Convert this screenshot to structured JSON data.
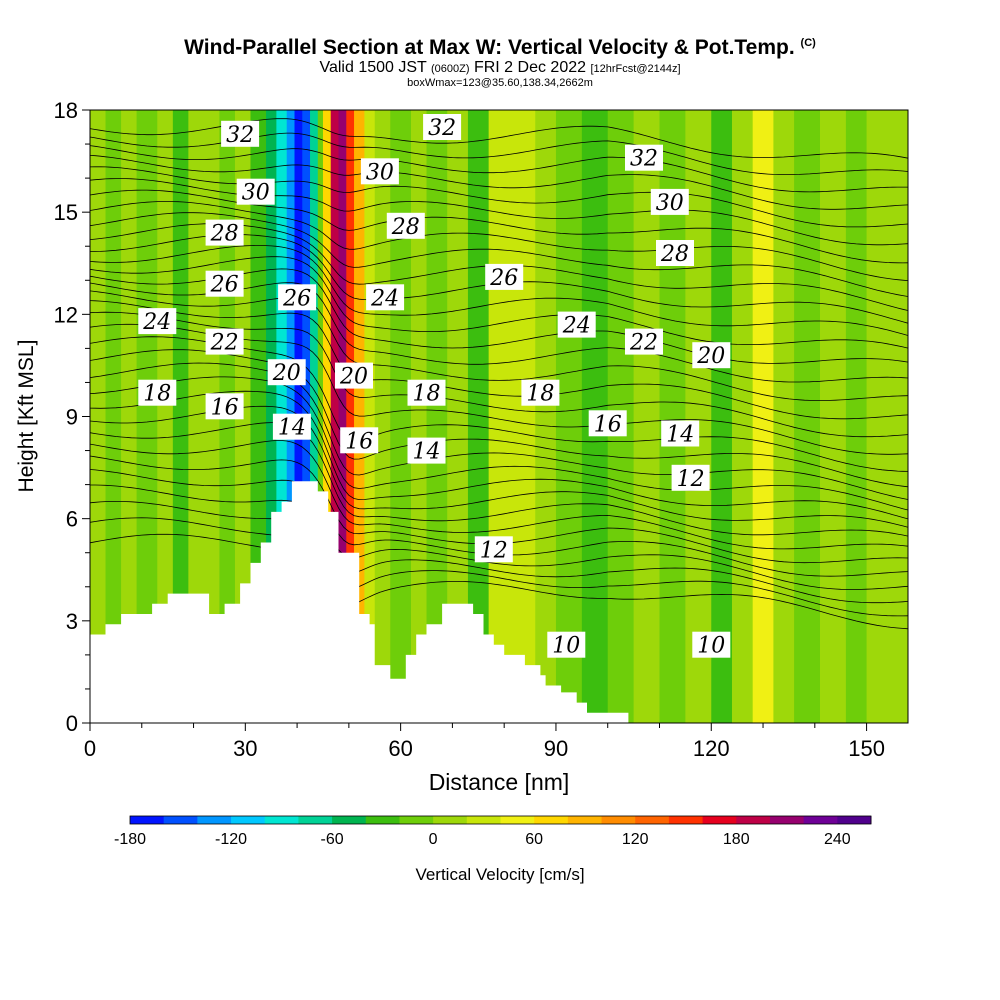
{
  "header": {
    "title": "Wind-Parallel Section at Max W: Vertical Velocity & Pot.Temp.",
    "title_flag": "(C)",
    "subtitle_main": "Valid 1500 JST",
    "subtitle_utc": "(0600Z)",
    "subtitle_date": "FRI 2 Dec 2022",
    "subtitle_fcst": "[12hrFcst@2144z]",
    "subtitle2": "boxWmax=123@35.60,138.34,2662m"
  },
  "chart_data": {
    "type": "heatmap",
    "xlabel": "Distance [nm]",
    "ylabel": "Height [Kft MSL]",
    "xlim": [
      0,
      158
    ],
    "ylim": [
      0,
      18
    ],
    "x_ticks": [
      0,
      30,
      60,
      90,
      120,
      150
    ],
    "y_ticks": [
      0,
      3,
      6,
      9,
      12,
      15,
      18
    ],
    "colorbar": {
      "label": "Vertical Velocity [cm/s]",
      "ticks": [
        -180,
        -120,
        -60,
        0,
        60,
        120,
        180,
        240
      ],
      "range": [
        -180,
        260
      ],
      "colors": [
        "#0014ff",
        "#0050ff",
        "#0096ff",
        "#00c8ff",
        "#00e6d2",
        "#00d296",
        "#00b450",
        "#3cbe0f",
        "#6ece0a",
        "#9ed80a",
        "#c8e60a",
        "#f0f014",
        "#ffd700",
        "#ffb400",
        "#ff8c00",
        "#ff6400",
        "#ff3200",
        "#e6001e",
        "#be0046",
        "#96006e",
        "#6e0096",
        "#50008c"
      ]
    },
    "contour_variable": "Potential temperature",
    "contour_labels": [
      {
        "text": "32",
        "x": 29,
        "y": 17.3
      },
      {
        "text": "32",
        "x": 68,
        "y": 17.5
      },
      {
        "text": "32",
        "x": 107,
        "y": 16.6
      },
      {
        "text": "30",
        "x": 32,
        "y": 15.6
      },
      {
        "text": "30",
        "x": 56,
        "y": 16.2
      },
      {
        "text": "30",
        "x": 112,
        "y": 15.3
      },
      {
        "text": "28",
        "x": 26,
        "y": 14.4
      },
      {
        "text": "28",
        "x": 61,
        "y": 14.6
      },
      {
        "text": "28",
        "x": 113,
        "y": 13.8
      },
      {
        "text": "26",
        "x": 26,
        "y": 12.9
      },
      {
        "text": "26",
        "x": 40,
        "y": 12.5
      },
      {
        "text": "26",
        "x": 80,
        "y": 13.1
      },
      {
        "text": "24",
        "x": 13,
        "y": 11.8
      },
      {
        "text": "24",
        "x": 57,
        "y": 12.5
      },
      {
        "text": "24",
        "x": 94,
        "y": 11.7
      },
      {
        "text": "22",
        "x": 26,
        "y": 11.2
      },
      {
        "text": "22",
        "x": 107,
        "y": 11.2
      },
      {
        "text": "20",
        "x": 38,
        "y": 10.3
      },
      {
        "text": "20",
        "x": 51,
        "y": 10.2
      },
      {
        "text": "20",
        "x": 120,
        "y": 10.8
      },
      {
        "text": "18",
        "x": 13,
        "y": 9.7
      },
      {
        "text": "18",
        "x": 65,
        "y": 9.7
      },
      {
        "text": "18",
        "x": 87,
        "y": 9.7
      },
      {
        "text": "16",
        "x": 26,
        "y": 9.3
      },
      {
        "text": "16",
        "x": 52,
        "y": 8.3
      },
      {
        "text": "16",
        "x": 100,
        "y": 8.8
      },
      {
        "text": "14",
        "x": 39,
        "y": 8.7
      },
      {
        "text": "14",
        "x": 65,
        "y": 8.0
      },
      {
        "text": "14",
        "x": 114,
        "y": 8.5
      },
      {
        "text": "12",
        "x": 78,
        "y": 5.1
      },
      {
        "text": "12",
        "x": 116,
        "y": 7.2
      },
      {
        "text": "10",
        "x": 92,
        "y": 2.3
      },
      {
        "text": "10",
        "x": 120,
        "y": 2.3
      }
    ],
    "terrain_profile": [
      [
        0,
        2.6
      ],
      [
        3,
        2.6
      ],
      [
        3,
        2.9
      ],
      [
        6,
        2.9
      ],
      [
        6,
        3.2
      ],
      [
        12,
        3.2
      ],
      [
        12,
        3.5
      ],
      [
        15,
        3.5
      ],
      [
        15,
        3.8
      ],
      [
        23,
        3.8
      ],
      [
        23,
        3.2
      ],
      [
        26,
        3.2
      ],
      [
        26,
        3.5
      ],
      [
        29,
        3.5
      ],
      [
        29,
        4.1
      ],
      [
        31,
        4.1
      ],
      [
        31,
        4.7
      ],
      [
        33,
        4.7
      ],
      [
        33,
        5.3
      ],
      [
        35,
        5.3
      ],
      [
        35,
        6.2
      ],
      [
        37,
        6.2
      ],
      [
        37,
        6.5
      ],
      [
        39,
        6.5
      ],
      [
        39,
        7.1
      ],
      [
        44,
        7.1
      ],
      [
        44,
        6.8
      ],
      [
        46,
        6.8
      ],
      [
        46,
        6.2
      ],
      [
        48,
        6.2
      ],
      [
        48,
        5.0
      ],
      [
        52,
        5.0
      ],
      [
        52,
        3.2
      ],
      [
        54,
        3.2
      ],
      [
        54,
        2.9
      ],
      [
        55,
        2.9
      ],
      [
        55,
        1.7
      ],
      [
        58,
        1.7
      ],
      [
        58,
        1.3
      ],
      [
        61,
        1.3
      ],
      [
        61,
        2.0
      ],
      [
        63,
        2.0
      ],
      [
        63,
        2.6
      ],
      [
        65,
        2.6
      ],
      [
        65,
        2.9
      ],
      [
        68,
        2.9
      ],
      [
        68,
        3.5
      ],
      [
        74,
        3.5
      ],
      [
        74,
        3.2
      ],
      [
        76,
        3.2
      ],
      [
        76,
        2.6
      ],
      [
        78,
        2.6
      ],
      [
        78,
        2.3
      ],
      [
        80,
        2.3
      ],
      [
        80,
        2.0
      ],
      [
        84,
        2.0
      ],
      [
        84,
        1.7
      ],
      [
        87,
        1.7
      ],
      [
        87,
        1.4
      ],
      [
        88,
        1.4
      ],
      [
        88,
        1.1
      ],
      [
        91,
        1.1
      ],
      [
        91,
        0.9
      ],
      [
        94,
        0.9
      ],
      [
        94,
        0.6
      ],
      [
        96,
        0.6
      ],
      [
        96,
        0.3
      ],
      [
        104,
        0.3
      ],
      [
        104,
        0
      ],
      [
        158,
        0
      ]
    ],
    "w_columns": [
      {
        "x0": 0,
        "x1": 3,
        "w": 2
      },
      {
        "x0": 3,
        "x1": 6,
        "w": -8
      },
      {
        "x0": 6,
        "x1": 9,
        "w": 5
      },
      {
        "x0": 9,
        "x1": 13,
        "w": -15
      },
      {
        "x0": 13,
        "x1": 16,
        "w": 6
      },
      {
        "x0": 16,
        "x1": 19,
        "w": -22
      },
      {
        "x0": 19,
        "x1": 22,
        "w": 4
      },
      {
        "x0": 22,
        "x1": 25,
        "w": 14
      },
      {
        "x0": 25,
        "x1": 28,
        "w": -12
      },
      {
        "x0": 28,
        "x1": 31,
        "w": 8
      },
      {
        "x0": 31,
        "x1": 34,
        "w": -28
      },
      {
        "x0": 34,
        "x1": 36,
        "w": -55
      },
      {
        "x0": 36,
        "x1": 38,
        "w": -95
      },
      {
        "x0": 38,
        "x1": 39.5,
        "w": -140
      },
      {
        "x0": 39.5,
        "x1": 41,
        "w": -175
      },
      {
        "x0": 41,
        "x1": 42.5,
        "w": -150
      },
      {
        "x0": 42.5,
        "x1": 44,
        "w": -80
      },
      {
        "x0": 44,
        "x1": 45,
        "w": -20
      },
      {
        "x0": 45,
        "x1": 46.5,
        "w": 70
      },
      {
        "x0": 46.5,
        "x1": 48,
        "w": 180
      },
      {
        "x0": 48,
        "x1": 49.5,
        "w": 215
      },
      {
        "x0": 49.5,
        "x1": 51,
        "w": 150
      },
      {
        "x0": 51,
        "x1": 53,
        "w": 85
      },
      {
        "x0": 53,
        "x1": 55,
        "w": 35
      },
      {
        "x0": 55,
        "x1": 58,
        "w": 10
      },
      {
        "x0": 58,
        "x1": 62,
        "w": -5
      },
      {
        "x0": 62,
        "x1": 65,
        "w": 12
      },
      {
        "x0": 65,
        "x1": 69,
        "w": -18
      },
      {
        "x0": 69,
        "x1": 73,
        "w": 5
      },
      {
        "x0": 73,
        "x1": 77,
        "w": -25
      },
      {
        "x0": 77,
        "x1": 81,
        "w": 20
      },
      {
        "x0": 81,
        "x1": 86,
        "w": 35
      },
      {
        "x0": 86,
        "x1": 90,
        "w": 10
      },
      {
        "x0": 90,
        "x1": 95,
        "w": -15
      },
      {
        "x0": 95,
        "x1": 100,
        "w": -30
      },
      {
        "x0": 100,
        "x1": 105,
        "w": -10
      },
      {
        "x0": 105,
        "x1": 110,
        "w": 15
      },
      {
        "x0": 110,
        "x1": 115,
        "w": -20
      },
      {
        "x0": 115,
        "x1": 120,
        "w": 5
      },
      {
        "x0": 120,
        "x1": 124,
        "w": -35
      },
      {
        "x0": 124,
        "x1": 128,
        "w": 10
      },
      {
        "x0": 128,
        "x1": 132,
        "w": 40
      },
      {
        "x0": 132,
        "x1": 136,
        "w": 5
      },
      {
        "x0": 136,
        "x1": 141,
        "w": -15
      },
      {
        "x0": 141,
        "x1": 146,
        "w": 12
      },
      {
        "x0": 146,
        "x1": 150,
        "w": -20
      },
      {
        "x0": 150,
        "x1": 154,
        "w": 3
      },
      {
        "x0": 154,
        "x1": 158,
        "w": 8
      }
    ]
  }
}
